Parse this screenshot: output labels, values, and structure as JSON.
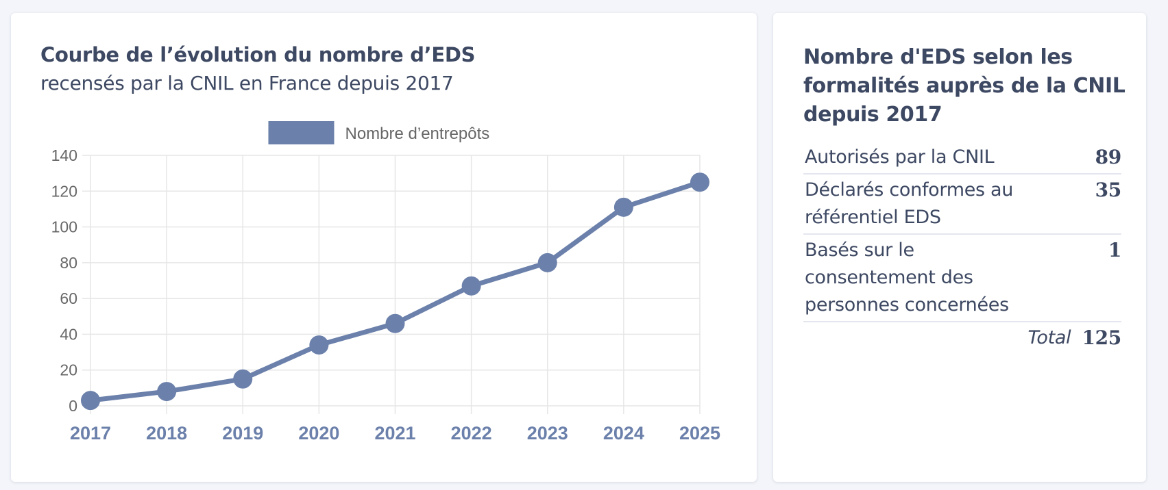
{
  "chart_card": {
    "title": "Courbe de l’évolution du nombre d’EDS",
    "subtitle": "recensés par la CNIL en France depuis 2017"
  },
  "chart_data": {
    "type": "line",
    "title": "Courbe de l’évolution du nombre d’EDS",
    "subtitle": "recensés par la CNIL en France depuis 2017",
    "x": [
      "2017",
      "2018",
      "2019",
      "2020",
      "2021",
      "2022",
      "2023",
      "2024",
      "2025"
    ],
    "series": [
      {
        "name": "Nombre d’entrepôts",
        "values": [
          3,
          8,
          15,
          34,
          46,
          67,
          80,
          111,
          125
        ],
        "color": "#6b80aa"
      }
    ],
    "yticks": [
      "0",
      "20",
      "40",
      "60",
      "80",
      "100",
      "120",
      "140"
    ],
    "ylim": [
      0,
      140
    ],
    "xlabel": "",
    "ylabel": "",
    "grid": true,
    "legend": "top-center"
  },
  "table_card": {
    "title": "Nombre d'EDS selon les formalités auprès de la CNIL depuis 2017",
    "rows": [
      {
        "label": "Autorisés par la CNIL",
        "value": "89"
      },
      {
        "label": "Déclarés conformes au référentiel EDS",
        "value": "35"
      },
      {
        "label": "Basés sur le consentement des personnes concernées",
        "value": "1"
      }
    ],
    "total_label": "Total",
    "total_value": "125"
  },
  "colors": {
    "accent": "#6b80aa",
    "text": "#3d4862",
    "grid": "#e6e6e6",
    "tick_label": "#666666"
  }
}
